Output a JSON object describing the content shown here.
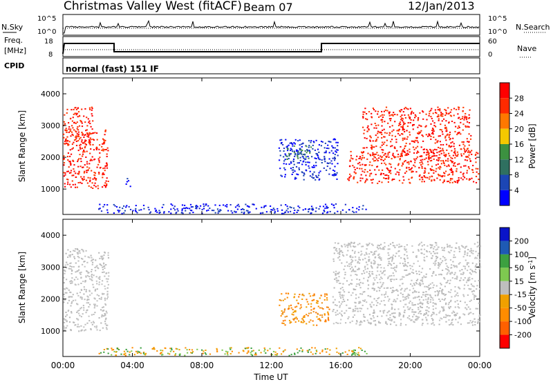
{
  "header": {
    "station": "Christmas Valley West (fitACF)",
    "beam": "Beam 07",
    "date": "12/Jan/2013"
  },
  "noise_panel": {
    "left_label": "N.Sky",
    "right_label": "N.Search",
    "left_ticks": [
      "10^5",
      "10^0"
    ],
    "right_ticks": [
      "10^5",
      "10^0"
    ]
  },
  "freq_panel": {
    "left_label_1": "Freq.",
    "left_label_2": "[MHz]",
    "right_label": "Nave",
    "left_ticks": [
      "18",
      "8"
    ],
    "right_ticks": [
      "60",
      "0"
    ]
  },
  "cpid": {
    "label": "CPID",
    "value": "normal (fast) 151 IF"
  },
  "colors": {
    "power_scale": [
      "#0000ff",
      "#1c46b4",
      "#2f7060",
      "#3c9140",
      "#f4c800",
      "#ff7800",
      "#ff2a00",
      "#ff0000"
    ],
    "velocity_scale": [
      "#ff0000",
      "#ff6000",
      "#ff8c00",
      "#f0a000",
      "#bebebe",
      "#7ec850",
      "#3ca040",
      "#1e5ab4",
      "#0a14c8"
    ]
  },
  "chart_data": [
    {
      "type": "heatmap",
      "name_printed": "",
      "ylabel": "Slant Range [km]",
      "ylim": [
        200,
        4500
      ],
      "yticks": [
        "4000",
        "3000",
        "2000",
        "1000"
      ],
      "xlim": [
        "00:00",
        "24:00"
      ],
      "colorbar_label": "Power [dB]",
      "colorbar_ticks": [
        "28",
        "24",
        "20",
        "16",
        "12",
        "8",
        "4"
      ],
      "regions": [
        {
          "t_start": 0.0,
          "t_end": 2.6,
          "range_start": 1000,
          "range_end": 2900,
          "value": "28",
          "desc_color": "red"
        },
        {
          "t_start": 0.0,
          "t_end": 1.7,
          "range_start": 2400,
          "range_end": 3600,
          "value": "28",
          "desc_color": "red"
        },
        {
          "t_start": 3.6,
          "t_end": 3.9,
          "range_start": 1100,
          "range_end": 1400,
          "value": "8",
          "desc_color": "blue"
        },
        {
          "t_start": 2.0,
          "t_end": 17.5,
          "range_start": 250,
          "range_end": 550,
          "value": "8",
          "desc_color": "blue"
        },
        {
          "t_start": 12.4,
          "t_end": 15.8,
          "range_start": 1300,
          "range_end": 2600,
          "value": "8",
          "desc_color": "blue"
        },
        {
          "t_start": 12.8,
          "t_end": 14.4,
          "range_start": 1900,
          "range_end": 2400,
          "value": "12",
          "desc_color": "green"
        },
        {
          "t_start": 16.3,
          "t_end": 23.9,
          "range_start": 1200,
          "range_end": 2200,
          "value": "28",
          "desc_color": "red"
        },
        {
          "t_start": 17.2,
          "t_end": 23.5,
          "range_start": 2000,
          "range_end": 3600,
          "value": "28",
          "desc_color": "red"
        }
      ]
    },
    {
      "type": "heatmap",
      "name_printed": "",
      "ylabel": "Slant Range [km]",
      "ylim": [
        200,
        4500
      ],
      "yticks": [
        "4000",
        "3000",
        "2000",
        "1000"
      ],
      "xlim": [
        "00:00",
        "24:00"
      ],
      "xticks": [
        "00:00",
        "04:00",
        "08:00",
        "12:00",
        "16:00",
        "20:00",
        "00:00"
      ],
      "xlabel": "Time UT",
      "colorbar_label": "Velocity [m s^-1]",
      "colorbar_ticks": [
        "200",
        "100",
        "50",
        "15",
        "-15",
        "-50",
        "-100",
        "-200"
      ],
      "regions": [
        {
          "t_start": 0.0,
          "t_end": 2.6,
          "range_start": 1000,
          "range_end": 3600,
          "value": "-15..15",
          "desc_color": "grey"
        },
        {
          "t_start": 12.4,
          "t_end": 15.3,
          "range_start": 1200,
          "range_end": 2200,
          "value": "-50",
          "desc_color": "orange"
        },
        {
          "t_start": 2.0,
          "t_end": 17.5,
          "range_start": 250,
          "range_end": 500,
          "value": "-50..50",
          "desc_color": "orange/green"
        },
        {
          "t_start": 15.5,
          "t_end": 24.0,
          "range_start": 1200,
          "range_end": 3800,
          "value": "-15..15",
          "desc_color": "grey"
        }
      ]
    }
  ]
}
